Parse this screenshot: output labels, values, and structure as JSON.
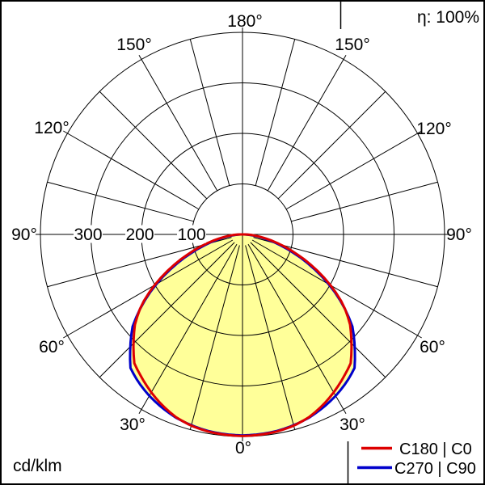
{
  "header": {
    "efficiency": "η: 100%"
  },
  "footer": {
    "unit": "cd/klm"
  },
  "legend": {
    "entries": [
      {
        "label": "C180 | C0",
        "color": "#dd0000"
      },
      {
        "label": "C270 | C90",
        "color": "#0000cc"
      }
    ]
  },
  "chart_data": {
    "type": "polar-line",
    "unit": "cd/klm",
    "efficiency": "η: 100%",
    "gamma_deg": [
      0,
      5,
      10,
      15,
      20,
      25,
      30,
      35,
      40,
      45,
      50,
      55,
      60,
      65,
      70,
      75,
      80,
      85,
      90
    ],
    "series": [
      {
        "name": "C180 | C0",
        "color": "#dd0000",
        "values": [
          399,
          398,
          396,
          392,
          385,
          374,
          361,
          347,
          333,
          305,
          278,
          244,
          201,
          157,
          115,
          78,
          47,
          23,
          5
        ]
      },
      {
        "name": "C270 | C90",
        "color": "#0000cc",
        "values": [
          398,
          397,
          395,
          391,
          386,
          378,
          369,
          358,
          345,
          314,
          284,
          242,
          197,
          151,
          108,
          71,
          41,
          17,
          3
        ]
      }
    ],
    "radial_axis": {
      "max": 400,
      "tick_labels": [
        "100",
        "200",
        "300"
      ]
    },
    "angle_labels": [
      "0°",
      "30°",
      "60°",
      "90°",
      "120°",
      "150°",
      "180°"
    ],
    "fill_color": "#ffff99",
    "grid_color": "#000000",
    "background": "#ffffff"
  }
}
